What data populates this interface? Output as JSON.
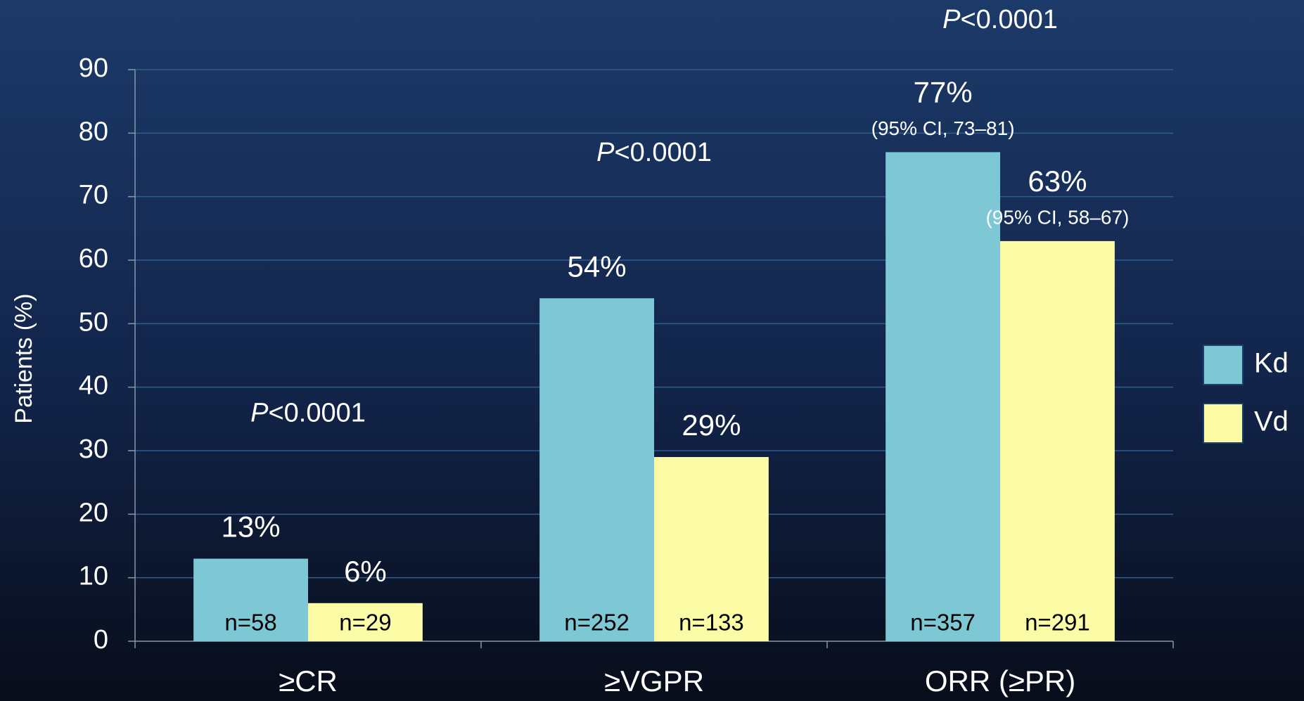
{
  "chart_data": {
    "type": "bar",
    "y_label": "Patients (%)",
    "categories": [
      "≥CR",
      "≥VGPR",
      "ORR (≥PR)"
    ],
    "series": [
      {
        "name": "Kd",
        "color": "#7ec8d6",
        "values": [
          13,
          54,
          77
        ],
        "value_labels": [
          "13%",
          "54%",
          "77%"
        ],
        "n_labels": [
          "n=58",
          "n=252",
          "n=357"
        ],
        "ci_labels": [
          null,
          null,
          "(95% CI, 73–81)"
        ]
      },
      {
        "name": "Vd",
        "color": "#fdfca6",
        "values": [
          6,
          29,
          63
        ],
        "value_labels": [
          "6%",
          "29%",
          "63%"
        ],
        "n_labels": [
          "n=29",
          "n=133",
          "n=291"
        ],
        "ci_labels": [
          null,
          null,
          "(95% CI, 58–67)"
        ]
      }
    ],
    "annotations": [
      {
        "italic": "P",
        "text": "<0.0001"
      },
      {
        "italic": "P",
        "text": "<0.0001"
      },
      {
        "italic": "P",
        "text": "<0.0001"
      }
    ],
    "ylim": [
      0,
      90
    ],
    "yticks": [
      0,
      10,
      20,
      30,
      40,
      50,
      60,
      70,
      80,
      90
    ],
    "grid": true,
    "legend": "right"
  }
}
